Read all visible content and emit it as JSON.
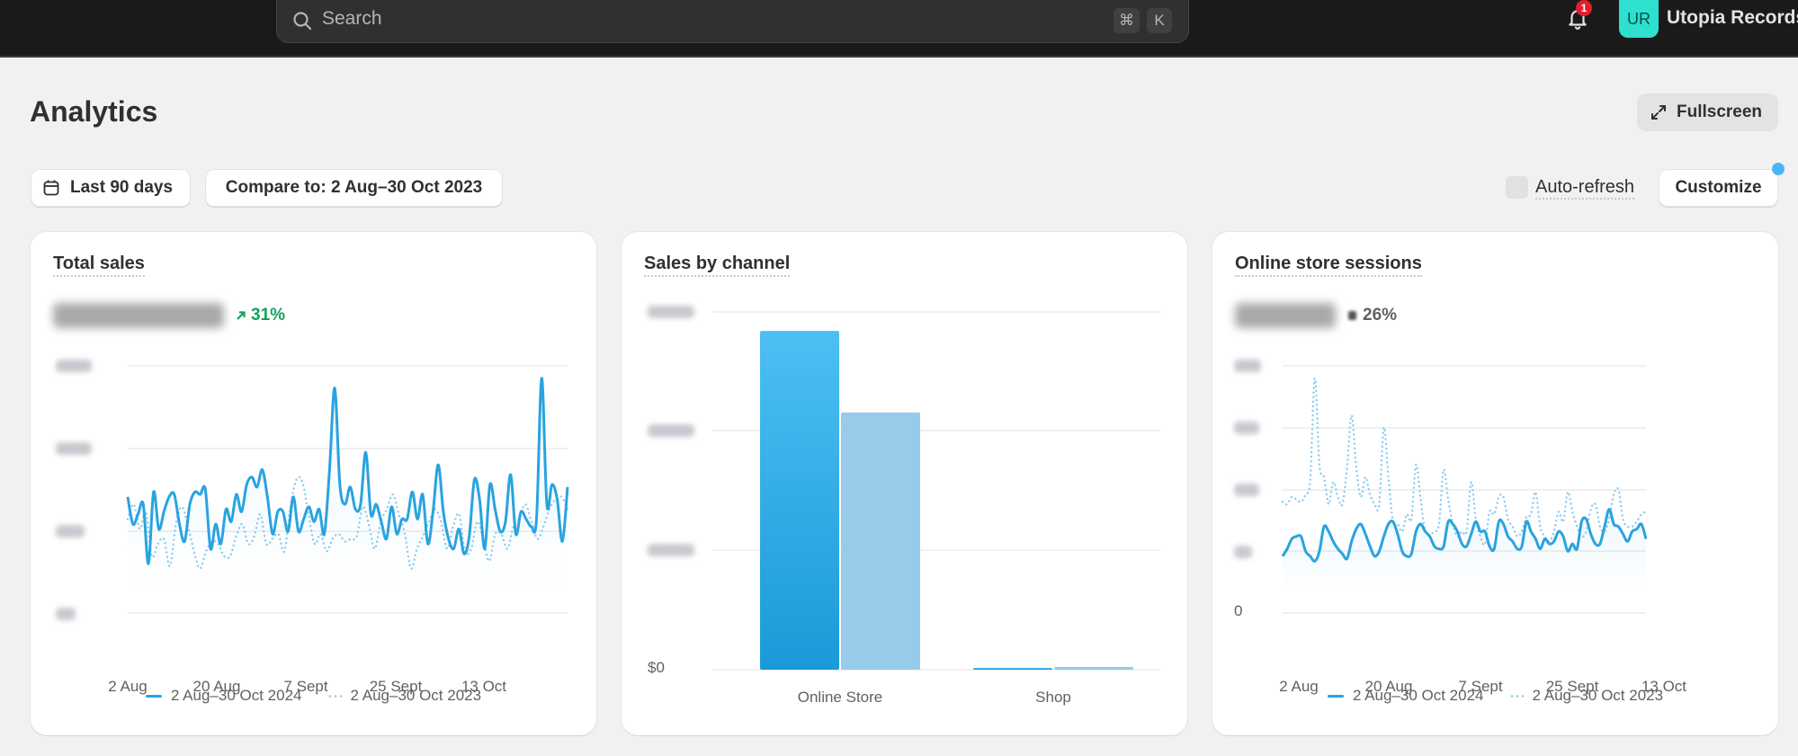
{
  "topbar": {
    "search_placeholder": "Search",
    "shortcut_keys": [
      "⌘",
      "K"
    ],
    "notification_count": "1",
    "avatar_initials": "UR",
    "store_name": "Utopia Records",
    "icons": {
      "search": "search-icon",
      "bell": "bell-icon"
    }
  },
  "header": {
    "title": "Analytics",
    "fullscreen_label": "Fullscreen"
  },
  "filters": {
    "date_range_label": "Last 90 days",
    "compare_label": "Compare to: 2 Aug–30 Oct 2023",
    "auto_refresh_label": "Auto-refresh",
    "auto_refresh_checked": false,
    "customize_label": "Customize"
  },
  "colors": {
    "accent": "#29a3e0",
    "accent_light": "#8ccbf0",
    "bar_current_top": "#4dbff3",
    "bar_current_bottom": "#1a9ad9",
    "bar_previous": "#97cbe9",
    "trend_up": "#14a05a",
    "topbar_bg": "#1a1a1a",
    "page_bg": "#f1f1f1",
    "avatar_bg": "#2ee0d0",
    "badge_bg": "#e51c2c",
    "notice_dot": "#4bb6f5"
  },
  "cards": [
    {
      "title": "Total sales",
      "value": "[redacted]",
      "change": "31%",
      "change_direction": "up",
      "y_ticks": [
        "[redacted]",
        "[redacted]",
        "[redacted]",
        "[redacted]"
      ],
      "x_ticks": [
        "2 Aug",
        "20 Aug",
        "7 Sept",
        "25 Sept",
        "13 Oct"
      ],
      "legend": [
        "2 Aug–30 Oct 2024",
        "2 Aug–30 Oct 2023"
      ]
    },
    {
      "title": "Sales by channel",
      "y_ticks": [
        "[redacted]",
        "[redacted]",
        "[redacted]",
        "$0"
      ],
      "categories": [
        "Online Store",
        "Shop"
      ]
    },
    {
      "title": "Online store sessions",
      "value": "[redacted]",
      "change": "26%",
      "change_direction": "neutral",
      "y_ticks": [
        "[redacted]",
        "[redacted]",
        "[redacted]",
        "[redacted]",
        "0"
      ],
      "x_ticks": [
        "2 Aug",
        "20 Aug",
        "7 Sept",
        "25 Sept",
        "13 Oct"
      ],
      "legend": [
        "2 Aug–30 Oct 2024",
        "2 Aug–30 Oct 2023"
      ]
    }
  ],
  "chart_data": [
    {
      "type": "line",
      "title": "Total sales",
      "xlabel": "",
      "ylabel": "",
      "y_units_note": "values as % of top gridline; axis tick values are redacted in screenshot",
      "ylim": [
        0,
        100
      ],
      "grid": true,
      "legend_position": "bottom",
      "x_ticks": [
        "2 Aug",
        "20 Aug",
        "7 Sept",
        "25 Sept",
        "13 Oct"
      ],
      "series": [
        {
          "name": "2 Aug–30 Oct 2024",
          "style": "solid",
          "values": [
            47,
            36,
            40,
            44,
            20,
            49,
            34,
            41,
            47,
            48,
            36,
            29,
            44,
            49,
            48,
            50,
            26,
            36,
            28,
            42,
            37,
            48,
            41,
            52,
            55,
            51,
            58,
            47,
            32,
            41,
            41,
            33,
            47,
            33,
            38,
            43,
            37,
            42,
            32,
            58,
            91,
            52,
            44,
            51,
            42,
            44,
            65,
            40,
            44,
            37,
            30,
            43,
            32,
            38,
            38,
            49,
            38,
            48,
            28,
            41,
            60,
            41,
            30,
            26,
            34,
            24,
            31,
            54,
            46,
            26,
            52,
            42,
            33,
            37,
            56,
            32,
            41,
            38,
            35,
            38,
            95,
            44,
            52,
            46,
            29,
            51
          ]
        },
        {
          "name": "2 Aug–30 Oct 2023",
          "style": "dotted",
          "values": [
            38,
            44,
            34,
            41,
            23,
            28,
            30,
            19,
            36,
            43,
            35,
            25,
            18,
            25,
            29,
            28,
            23,
            23,
            31,
            36,
            28,
            31,
            40,
            28,
            30,
            32,
            25,
            43,
            54,
            53,
            40,
            28,
            32,
            25,
            30,
            32,
            29,
            30,
            31,
            43,
            36,
            26,
            37,
            42,
            48,
            40,
            32,
            18,
            26,
            31,
            37,
            42,
            37,
            26,
            35,
            40,
            25,
            26,
            37,
            30,
            21,
            32,
            32,
            26,
            35,
            38,
            44,
            37,
            30,
            35,
            42,
            46,
            47,
            42
          ]
        }
      ]
    },
    {
      "type": "bar",
      "title": "Sales by channel",
      "xlabel": "",
      "ylabel": "",
      "y_units_note": "values as % of top gridline; top tick labels redacted, bottom tick is $0",
      "ylim": [
        0,
        100
      ],
      "grid": true,
      "categories": [
        "Online Store",
        "Shop"
      ],
      "series": [
        {
          "name": "2 Aug–30 Oct 2024",
          "values": [
            94.7,
            0.5
          ]
        },
        {
          "name": "2 Aug–30 Oct 2023",
          "values": [
            71.9,
            0.8
          ]
        }
      ]
    },
    {
      "type": "line",
      "title": "Online store sessions",
      "xlabel": "",
      "ylabel": "",
      "y_units_note": "values as % of top gridline; tick labels redacted except 0",
      "ylim": [
        0,
        100
      ],
      "grid": true,
      "legend_position": "bottom",
      "x_ticks": [
        "2 Aug",
        "20 Aug",
        "7 Sept",
        "25 Sept",
        "13 Oct"
      ],
      "series": [
        {
          "name": "2 Aug–30 Oct 2024",
          "style": "solid",
          "values": [
            23,
            26,
            30,
            31,
            31,
            25,
            23,
            21,
            25,
            35,
            33,
            29,
            26,
            24,
            22,
            29,
            34,
            36,
            32,
            27,
            23,
            25,
            31,
            36,
            37,
            32,
            25,
            23,
            24,
            33,
            36,
            33,
            31,
            27,
            26,
            27,
            37,
            36,
            33,
            28,
            27,
            32,
            37,
            33,
            33,
            27,
            26,
            37,
            36,
            31,
            29,
            26,
            27,
            37,
            33,
            30,
            26,
            30,
            28,
            29,
            33,
            31,
            25,
            28,
            26,
            37,
            38,
            32,
            28,
            28,
            35,
            42,
            36,
            35,
            32,
            29,
            33,
            34,
            36,
            30
          ]
        },
        {
          "name": "2 Aug–30 Oct 2023",
          "style": "dotted",
          "values": [
            45,
            44,
            47,
            46,
            45,
            48,
            54,
            95,
            60,
            55,
            44,
            53,
            47,
            44,
            59,
            80,
            59,
            47,
            55,
            48,
            44,
            44,
            75,
            55,
            37,
            36,
            33,
            40,
            38,
            60,
            46,
            33,
            32,
            33,
            36,
            58,
            46,
            36,
            31,
            33,
            33,
            53,
            38,
            31,
            28,
            41,
            40,
            47,
            47,
            38,
            35,
            31,
            33,
            39,
            40,
            49,
            35,
            31,
            29,
            33,
            41,
            37,
            49,
            41,
            35,
            31,
            33,
            42,
            44,
            35,
            33,
            38,
            48,
            50,
            38,
            35,
            35,
            37,
            40,
            41
          ]
        }
      ]
    }
  ]
}
